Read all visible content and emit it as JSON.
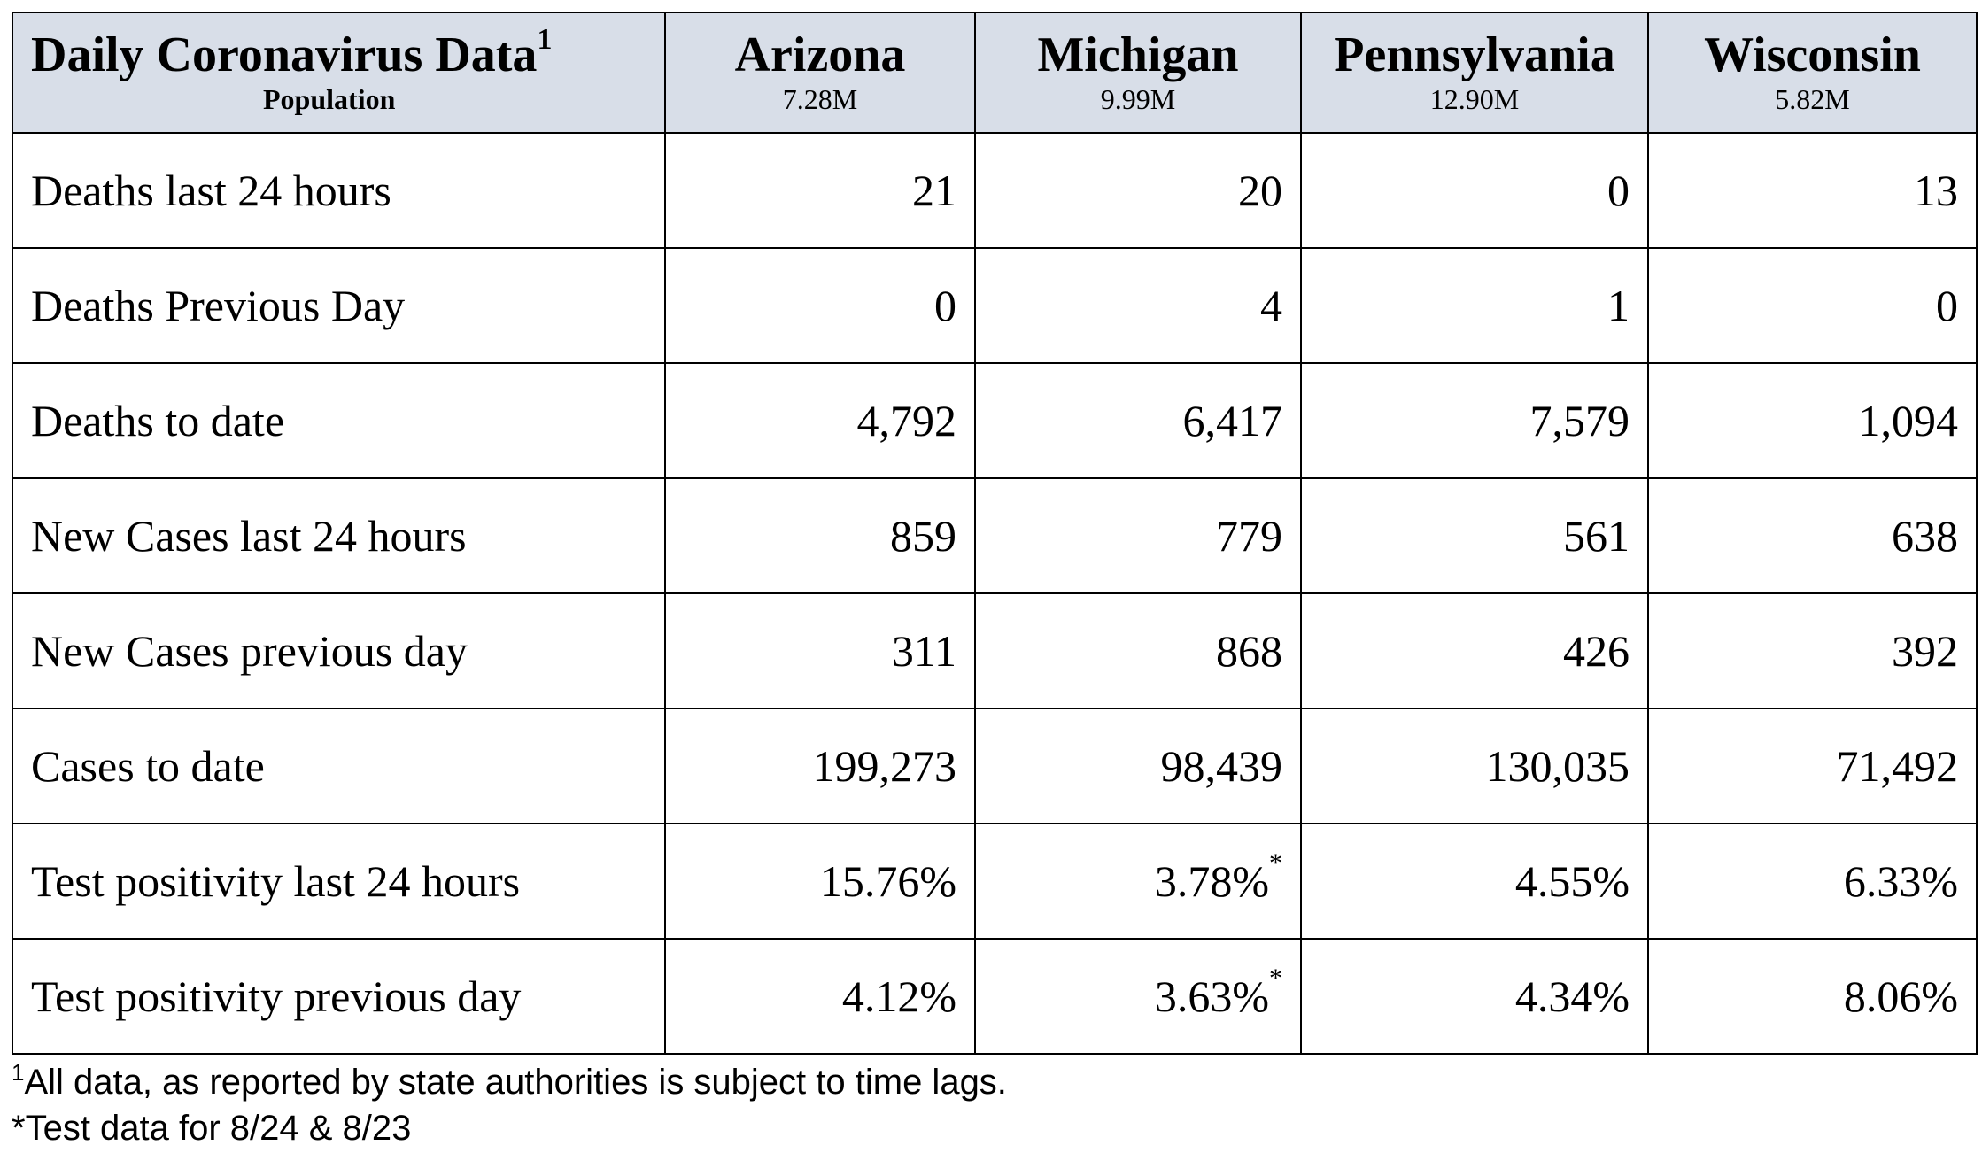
{
  "table": {
    "title": "Daily Coronavirus Data",
    "title_marker": "1",
    "subtitle": "Population",
    "states": [
      {
        "name": "Arizona",
        "population": "7.28M"
      },
      {
        "name": "Michigan",
        "population": "9.99M"
      },
      {
        "name": "Pennsylvania",
        "population": "12.90M"
      },
      {
        "name": "Wisconsin",
        "population": "5.82M"
      }
    ],
    "rows": [
      {
        "label": "Deaths last 24 hours",
        "values": [
          "21",
          "20",
          "0",
          "13"
        ],
        "markers": [
          "",
          "",
          "",
          ""
        ]
      },
      {
        "label": "Deaths Previous Day",
        "values": [
          "0",
          "4",
          "1",
          "0"
        ],
        "markers": [
          "",
          "",
          "",
          ""
        ]
      },
      {
        "label": "Deaths to date",
        "values": [
          "4,792",
          "6,417",
          "7,579",
          "1,094"
        ],
        "markers": [
          "",
          "",
          "",
          ""
        ]
      },
      {
        "label": "New Cases last 24 hours",
        "values": [
          "859",
          "779",
          "561",
          "638"
        ],
        "markers": [
          "",
          "",
          "",
          ""
        ]
      },
      {
        "label": "New Cases previous day",
        "values": [
          "311",
          "868",
          "426",
          "392"
        ],
        "markers": [
          "",
          "",
          "",
          ""
        ]
      },
      {
        "label": "Cases to date",
        "values": [
          "199,273",
          "98,439",
          "130,035",
          "71,492"
        ],
        "markers": [
          "",
          "",
          "",
          ""
        ]
      },
      {
        "label": "Test positivity last 24 hours",
        "values": [
          "15.76%",
          "3.78%",
          "4.55%",
          "6.33%"
        ],
        "markers": [
          "",
          "*",
          "",
          ""
        ]
      },
      {
        "label": "Test positivity previous day",
        "values": [
          "4.12%",
          "3.63%",
          "4.34%",
          "8.06%"
        ],
        "markers": [
          "",
          "*",
          "",
          ""
        ]
      }
    ]
  },
  "footnotes": {
    "note1_marker": "1",
    "note1_text": "All data, as reported by state authorities is subject to time lags.",
    "note2_text": "*Test data for 8/24 & 8/23"
  },
  "colors": {
    "header_background": "#d8dee8",
    "border": "#000000",
    "text": "#000000"
  }
}
